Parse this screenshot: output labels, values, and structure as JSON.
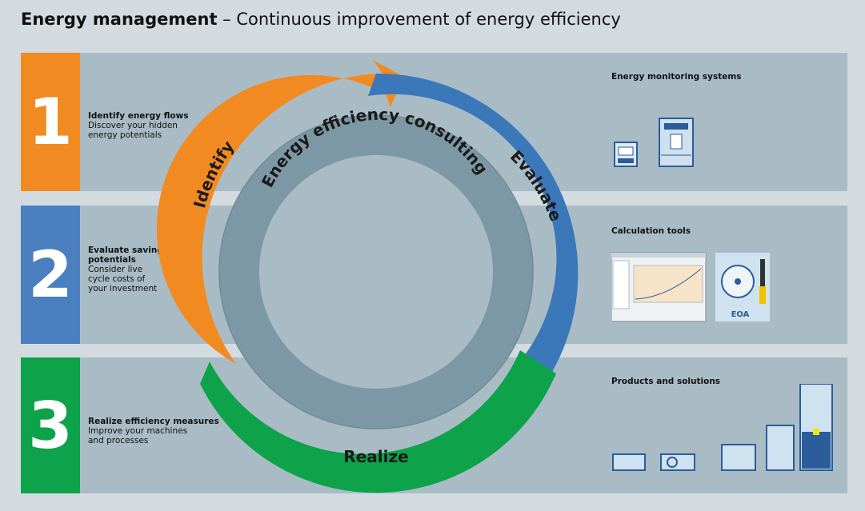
{
  "title": {
    "bold": "Energy management",
    "rest": " – Continuous improvement of energy efficiency"
  },
  "steps": [
    {
      "number": "1",
      "heading": "Identify energy flows",
      "text": [
        "Discover your hidden",
        "energy potentials"
      ],
      "color": "#f28a22"
    },
    {
      "number": "2",
      "heading": [
        "Evaluate saving",
        "potentials"
      ],
      "text": [
        "Consider live",
        "cycle costs of",
        "your investment"
      ],
      "color": "#4a7fc0"
    },
    {
      "number": "3",
      "heading": "Realize efficiency measures",
      "text": [
        "Improve your machines",
        "and processes"
      ],
      "color": "#0ea24a"
    }
  ],
  "cycle": {
    "center": "Energy efficiency consulting",
    "identify": "Identify",
    "evaluate": "Evaluate",
    "realize": "Realize",
    "colors": {
      "identify": "#f28a22",
      "evaluate": "#3b78ba",
      "realize": "#0ea24a",
      "inner_ring": "#7d98a5",
      "center": "#a9bcc5"
    }
  },
  "right": {
    "monitoring": "Energy monitoring systems",
    "calc": "Calculation tools",
    "calc_cd": "EOA",
    "products": "Products and solutions"
  }
}
